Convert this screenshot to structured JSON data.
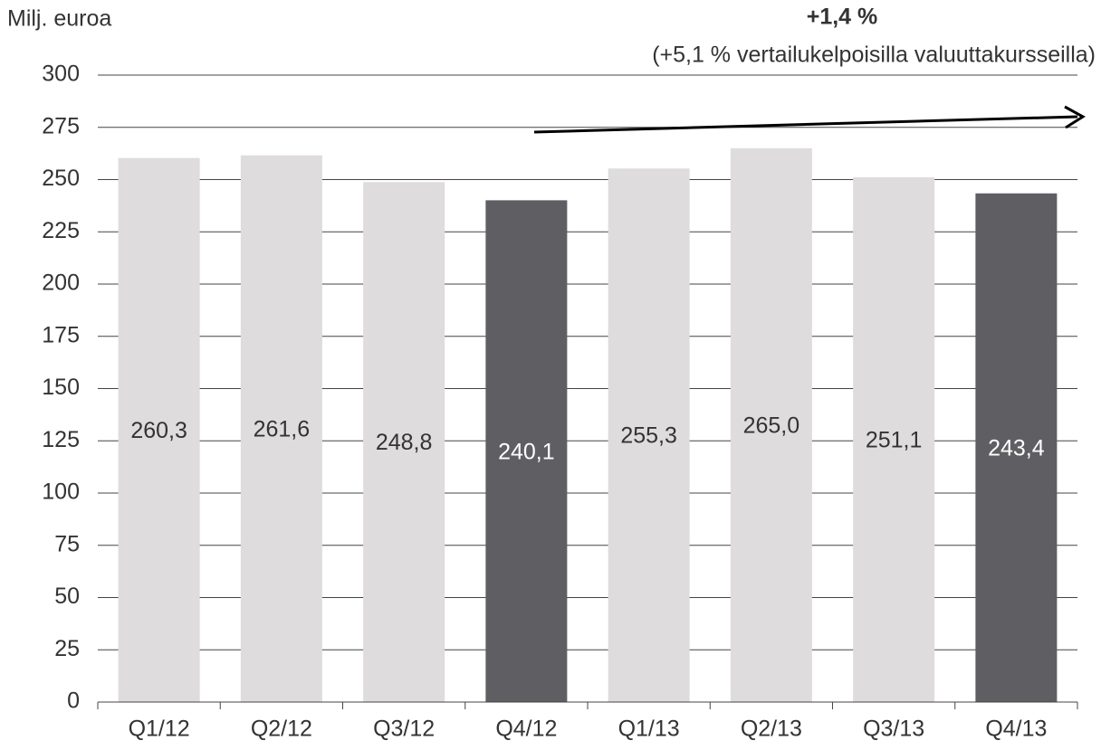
{
  "chart_data": {
    "type": "bar",
    "y_label": "Milj. euroa",
    "annotation": "+1,4 %",
    "annotation_sub": "(+5,1 % vertailukelpoisilla valuuttakursseilla)",
    "categories": [
      "Q1/12",
      "Q2/12",
      "Q3/12",
      "Q4/12",
      "Q1/13",
      "Q2/13",
      "Q3/13",
      "Q4/13"
    ],
    "values": [
      260.3,
      261.6,
      248.8,
      240.1,
      255.3,
      265.0,
      251.1,
      243.4
    ],
    "value_labels": [
      "260,3",
      "261,6",
      "248,8",
      "240,1",
      "255,3",
      "265,0",
      "251,1",
      "243,4"
    ],
    "colors": [
      "#dedcdc",
      "#dedcdc",
      "#dedcdc",
      "#5f5e62",
      "#dedcdc",
      "#dedcdc",
      "#dedcdc",
      "#5f5e62"
    ],
    "ylim": [
      0,
      300
    ],
    "yticks": [
      0,
      25,
      50,
      75,
      100,
      125,
      150,
      175,
      200,
      225,
      250,
      275,
      300
    ],
    "grid": true
  }
}
